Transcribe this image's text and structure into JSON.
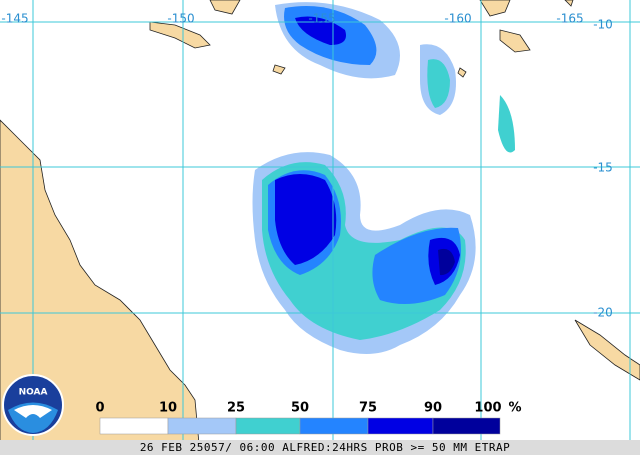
{
  "map": {
    "lon_labels": [
      "-145",
      "-150",
      "-155",
      "-160",
      "-165"
    ],
    "lat_labels": [
      "-10",
      "-15",
      "-20"
    ],
    "logo": "NOAA",
    "legend": {
      "labels": [
        "0",
        "10",
        "25",
        "50",
        "75",
        "90",
        "100"
      ],
      "unit": "%",
      "colors": [
        "#ffffff",
        "#a4c8f8",
        "#40d0d0",
        "#2484ff",
        "#0000e4",
        "#00009c"
      ]
    },
    "caption": "26 FEB 25057/ 06:00 ALFRED:24HRS PROB >= 50 MM ETRAP"
  }
}
